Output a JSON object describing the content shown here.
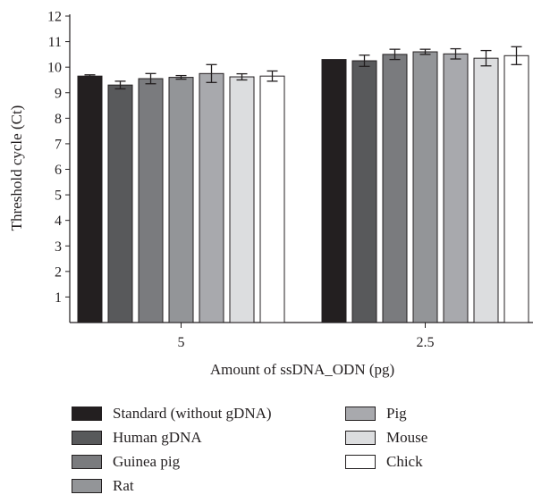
{
  "chart_data": {
    "type": "bar",
    "categories": [
      "5",
      "2.5"
    ],
    "series": [
      {
        "name": "Standard (without gDNA)",
        "color": "#231f20",
        "values": [
          9.65,
          10.3
        ],
        "errors": [
          0.05,
          0.0
        ]
      },
      {
        "name": "Human gDNA",
        "color": "#58595b",
        "values": [
          9.3,
          10.25
        ],
        "errors": [
          0.15,
          0.22
        ]
      },
      {
        "name": "Guinea pig",
        "color": "#7a7b7e",
        "values": [
          9.55,
          10.5
        ],
        "errors": [
          0.2,
          0.2
        ]
      },
      {
        "name": "Rat",
        "color": "#939598",
        "values": [
          9.6,
          10.6
        ],
        "errors": [
          0.07,
          0.1
        ]
      },
      {
        "name": "Pig",
        "color": "#a8a9ad",
        "values": [
          9.75,
          10.52
        ],
        "errors": [
          0.35,
          0.2
        ]
      },
      {
        "name": "Mouse",
        "color": "#dcdddf",
        "values": [
          9.62,
          10.35
        ],
        "errors": [
          0.12,
          0.3
        ]
      },
      {
        "name": "Chick",
        "color": "#ffffff",
        "values": [
          9.65,
          10.45
        ],
        "errors": [
          0.2,
          0.35
        ]
      }
    ],
    "xlabel": "Amount of ssDNA_ODN (pg)",
    "ylabel": "Threshold cycle (Ct)",
    "ylim": [
      0,
      12
    ],
    "yticks": [
      "1",
      "2",
      "3",
      "4",
      "5",
      "6",
      "7",
      "8",
      "9",
      "10",
      "11",
      "12"
    ],
    "grid": false,
    "legend_position": "bottom"
  }
}
